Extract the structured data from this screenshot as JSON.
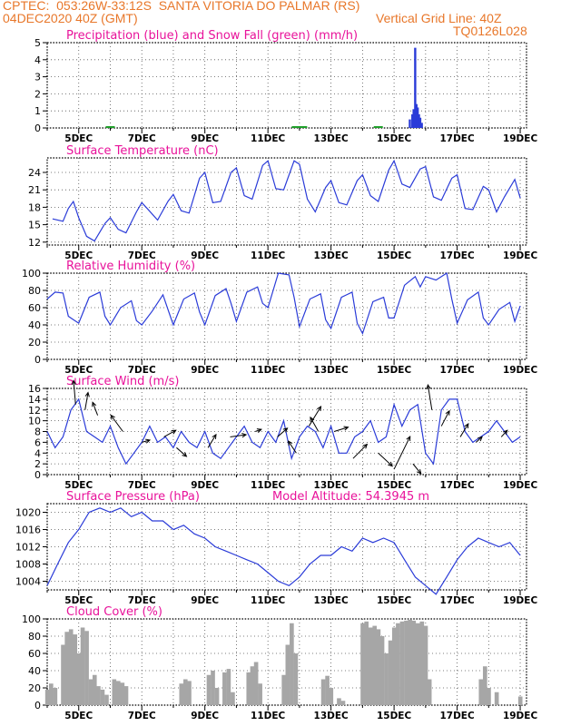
{
  "header": {
    "line1_left": "CPTEC:  053:26W-33:12S  SANTA VITORIA DO PALMAR (RS)",
    "line2_left": "04DEC2020 40Z (GMT)",
    "line2_right": "Vertical Grid Line: 40Z",
    "code": "TQ0126L028",
    "header_color": "#e8772a"
  },
  "colors": {
    "title": "#e8129a",
    "line": "#2a3bd8",
    "precip": "#2a3bd8",
    "snow": "#1fa02a",
    "cloud": "#a6a6a6",
    "axis": "#000000",
    "grid": "#555555"
  },
  "x_ticks": [
    "5DEC",
    "7DEC",
    "9DEC",
    "11DEC",
    "13DEC",
    "15DEC",
    "17DEC",
    "19DEC"
  ],
  "chart_data": [
    {
      "type": "bar",
      "title": "Precipitation (blue) and Snow Fall (green) (mm/h)",
      "ylim": [
        0,
        5
      ],
      "yticks": [
        0,
        1,
        2,
        3,
        4,
        5
      ],
      "series": [
        {
          "name": "Precipitation",
          "x": [
            15.5,
            15.58,
            15.62,
            15.67,
            15.71,
            15.75,
            15.79,
            15.83,
            15.88
          ],
          "values": [
            0.5,
            0.8,
            1.1,
            4.7,
            1.4,
            1.2,
            0.8,
            0.6,
            0.3
          ]
        },
        {
          "name": "Snow Fall",
          "x": [
            6.0,
            11.9,
            12.1,
            14.5
          ],
          "values": [
            0.03,
            0.05,
            0.05,
            0.03
          ]
        }
      ]
    },
    {
      "type": "line",
      "title": "Surface Temperature (nC)",
      "ylim": [
        11.5,
        26.5
      ],
      "yticks": [
        12,
        15,
        18,
        21,
        24
      ],
      "x": [
        4.17,
        4.5,
        4.67,
        4.83,
        5.0,
        5.25,
        5.5,
        5.83,
        6.0,
        6.25,
        6.5,
        6.83,
        7.0,
        7.17,
        7.5,
        7.83,
        8.0,
        8.25,
        8.5,
        8.83,
        9.0,
        9.25,
        9.5,
        9.83,
        10.0,
        10.25,
        10.5,
        10.83,
        11.0,
        11.25,
        11.5,
        11.83,
        12.0,
        12.25,
        12.5,
        12.83,
        13.0,
        13.25,
        13.5,
        13.83,
        14.0,
        14.25,
        14.5,
        14.83,
        15.0,
        15.25,
        15.5,
        15.83,
        16.0,
        16.25,
        16.5,
        16.83,
        17.0,
        17.25,
        17.5,
        17.83,
        18.0,
        18.25,
        18.5,
        18.83,
        19.0
      ],
      "values": [
        16.0,
        15.6,
        17.8,
        19.0,
        16.2,
        13.0,
        12.2,
        15.2,
        16.2,
        14.2,
        13.6,
        17.2,
        18.8,
        17.8,
        15.8,
        19.0,
        20.2,
        17.4,
        17.0,
        23.0,
        24.0,
        18.8,
        19.0,
        24.0,
        24.8,
        20.0,
        19.4,
        25.2,
        26.0,
        21.2,
        21.0,
        26.0,
        25.4,
        19.4,
        17.2,
        21.4,
        22.6,
        18.8,
        18.4,
        22.6,
        23.6,
        20.0,
        19.0,
        24.4,
        26.0,
        22.0,
        21.4,
        24.6,
        25.0,
        19.8,
        19.2,
        23.0,
        23.6,
        17.8,
        17.6,
        21.6,
        21.0,
        17.2,
        19.8,
        22.8,
        19.6
      ]
    },
    {
      "type": "line",
      "title": "Relative Humidity (%)",
      "ylim": [
        0,
        100
      ],
      "yticks": [
        0,
        20,
        40,
        60,
        80,
        100
      ],
      "x": [
        4.0,
        4.25,
        4.5,
        4.67,
        4.83,
        5.0,
        5.33,
        5.67,
        5.83,
        6.0,
        6.33,
        6.67,
        6.83,
        7.0,
        7.33,
        7.67,
        7.83,
        8.0,
        8.33,
        8.67,
        8.83,
        9.0,
        9.33,
        9.67,
        9.83,
        10.0,
        10.33,
        10.67,
        10.83,
        11.0,
        11.33,
        11.67,
        11.83,
        12.0,
        12.33,
        12.67,
        12.83,
        13.0,
        13.33,
        13.67,
        13.83,
        14.0,
        14.33,
        14.67,
        14.83,
        15.0,
        15.33,
        15.67,
        15.83,
        16.0,
        16.33,
        16.67,
        16.83,
        17.0,
        17.33,
        17.67,
        17.83,
        18.0,
        18.33,
        18.67,
        18.83,
        19.0
      ],
      "values": [
        70,
        78,
        77,
        50,
        46,
        42,
        72,
        78,
        50,
        40,
        60,
        68,
        45,
        40,
        56,
        75,
        58,
        40,
        70,
        77,
        55,
        40,
        74,
        82,
        65,
        44,
        78,
        84,
        65,
        60,
        100,
        98,
        72,
        38,
        70,
        76,
        46,
        36,
        72,
        78,
        42,
        30,
        67,
        72,
        48,
        48,
        86,
        96,
        84,
        96,
        92,
        100,
        70,
        42,
        69,
        78,
        48,
        40,
        58,
        66,
        44,
        62
      ]
    },
    {
      "type": "line",
      "title": "Surface Wind (m/s)",
      "ylim": [
        0,
        16
      ],
      "yticks": [
        0,
        2,
        4,
        6,
        8,
        10,
        12,
        14,
        16
      ],
      "x": [
        4.0,
        4.25,
        4.5,
        4.75,
        5.0,
        5.25,
        5.5,
        5.75,
        6.0,
        6.25,
        6.5,
        6.75,
        7.0,
        7.25,
        7.5,
        7.75,
        8.0,
        8.25,
        8.5,
        8.75,
        9.0,
        9.25,
        9.5,
        9.75,
        10.0,
        10.25,
        10.5,
        10.75,
        11.0,
        11.25,
        11.5,
        11.75,
        12.0,
        12.25,
        12.5,
        12.75,
        13.0,
        13.25,
        13.5,
        13.75,
        14.0,
        14.25,
        14.5,
        14.75,
        15.0,
        15.25,
        15.5,
        15.75,
        16.0,
        16.25,
        16.5,
        16.75,
        17.0,
        17.25,
        17.5,
        17.75,
        18.0,
        18.25,
        18.5,
        18.75,
        19.0
      ],
      "values": [
        8,
        5,
        7,
        12,
        14,
        8,
        7,
        6,
        9,
        5,
        2,
        4,
        6,
        9,
        6,
        7,
        5,
        8,
        6,
        5,
        8,
        4,
        3,
        5,
        7,
        9,
        6,
        5,
        8,
        6,
        10,
        3,
        7,
        9,
        8,
        5,
        9,
        4,
        4,
        7,
        8,
        10,
        6,
        7,
        13,
        9,
        12,
        13,
        4,
        2,
        12,
        14,
        14,
        8,
        6,
        7,
        8,
        10,
        8,
        6,
        7
      ]
    },
    {
      "type": "line",
      "title": "Surface Pressure (hPa)",
      "annotation": "Model Altitude: 54.3945 m",
      "ylim": [
        1002,
        1022
      ],
      "yticks": [
        1004,
        1008,
        1012,
        1016,
        1020
      ],
      "x": [
        4.0,
        4.33,
        4.67,
        5.0,
        5.33,
        5.67,
        6.0,
        6.33,
        6.67,
        7.0,
        7.33,
        7.67,
        8.0,
        8.33,
        8.67,
        9.0,
        9.33,
        9.67,
        10.0,
        10.33,
        10.67,
        11.0,
        11.33,
        11.67,
        12.0,
        12.33,
        12.67,
        13.0,
        13.33,
        13.67,
        14.0,
        14.33,
        14.67,
        15.0,
        15.33,
        15.67,
        16.0,
        16.33,
        16.67,
        17.0,
        17.33,
        17.67,
        18.0,
        18.33,
        18.67,
        19.0
      ],
      "values": [
        1003,
        1008,
        1013,
        1016,
        1020,
        1021,
        1020,
        1021,
        1019,
        1020,
        1018,
        1018,
        1016,
        1017,
        1015,
        1014,
        1012,
        1011,
        1010,
        1009,
        1008,
        1006,
        1004,
        1003,
        1005,
        1008,
        1010,
        1010,
        1012,
        1011,
        1014,
        1013,
        1014,
        1013,
        1009,
        1005,
        1003,
        1001,
        1005,
        1009,
        1012,
        1014,
        1013,
        1012,
        1013,
        1010
      ]
    },
    {
      "type": "bar",
      "title": "Cloud Cover (%)",
      "ylim": [
        0,
        100
      ],
      "yticks": [
        0,
        20,
        40,
        60,
        80,
        100
      ],
      "x": [
        4.0,
        4.12,
        4.25,
        4.38,
        4.5,
        4.62,
        4.75,
        4.88,
        5.0,
        5.12,
        5.25,
        5.38,
        5.5,
        5.62,
        5.75,
        5.88,
        6.0,
        6.12,
        6.25,
        6.38,
        6.5,
        6.62,
        6.75,
        6.88,
        7.0,
        7.12,
        7.25,
        7.38,
        7.5,
        7.62,
        7.75,
        7.88,
        8.0,
        8.12,
        8.25,
        8.38,
        8.5,
        8.62,
        8.75,
        8.88,
        9.0,
        9.12,
        9.25,
        9.38,
        9.5,
        9.62,
        9.75,
        9.88,
        10.0,
        10.12,
        10.25,
        10.38,
        10.5,
        10.62,
        10.75,
        10.88,
        11.0,
        11.12,
        11.25,
        11.38,
        11.5,
        11.62,
        11.75,
        11.88,
        12.0,
        12.12,
        12.25,
        12.38,
        12.5,
        12.62,
        12.75,
        12.88,
        13.0,
        13.12,
        13.25,
        13.38,
        13.5,
        13.62,
        13.75,
        13.88,
        14.0,
        14.12,
        14.25,
        14.38,
        14.5,
        14.62,
        14.75,
        14.88,
        15.0,
        15.12,
        15.25,
        15.38,
        15.5,
        15.62,
        15.75,
        15.88,
        16.0,
        16.12,
        16.25,
        16.38,
        16.5,
        16.62,
        16.75,
        16.88,
        17.0,
        17.12,
        17.25,
        17.38,
        17.5,
        17.62,
        17.75,
        17.88,
        18.0,
        18.12,
        18.25,
        18.38,
        18.5,
        18.62,
        18.75,
        18.88,
        19.0
      ],
      "values": [
        18,
        25,
        20,
        0,
        70,
        85,
        88,
        82,
        60,
        90,
        86,
        30,
        35,
        22,
        18,
        12,
        0,
        30,
        28,
        26,
        22,
        0,
        0,
        0,
        0,
        0,
        0,
        0,
        0,
        0,
        0,
        0,
        0,
        0,
        25,
        30,
        28,
        0,
        0,
        0,
        0,
        35,
        40,
        20,
        0,
        38,
        42,
        15,
        0,
        0,
        0,
        38,
        45,
        50,
        25,
        0,
        0,
        0,
        0,
        0,
        35,
        70,
        95,
        60,
        0,
        0,
        0,
        0,
        0,
        0,
        30,
        34,
        20,
        0,
        8,
        5,
        0,
        0,
        0,
        0,
        95,
        97,
        90,
        92,
        88,
        80,
        60,
        75,
        90,
        95,
        97,
        98,
        99,
        98,
        95,
        97,
        92,
        30,
        0,
        0,
        0,
        0,
        0,
        0,
        0,
        0,
        0,
        0,
        0,
        0,
        30,
        45,
        20,
        0,
        15,
        0,
        0,
        0,
        0,
        0,
        10
      ]
    }
  ]
}
